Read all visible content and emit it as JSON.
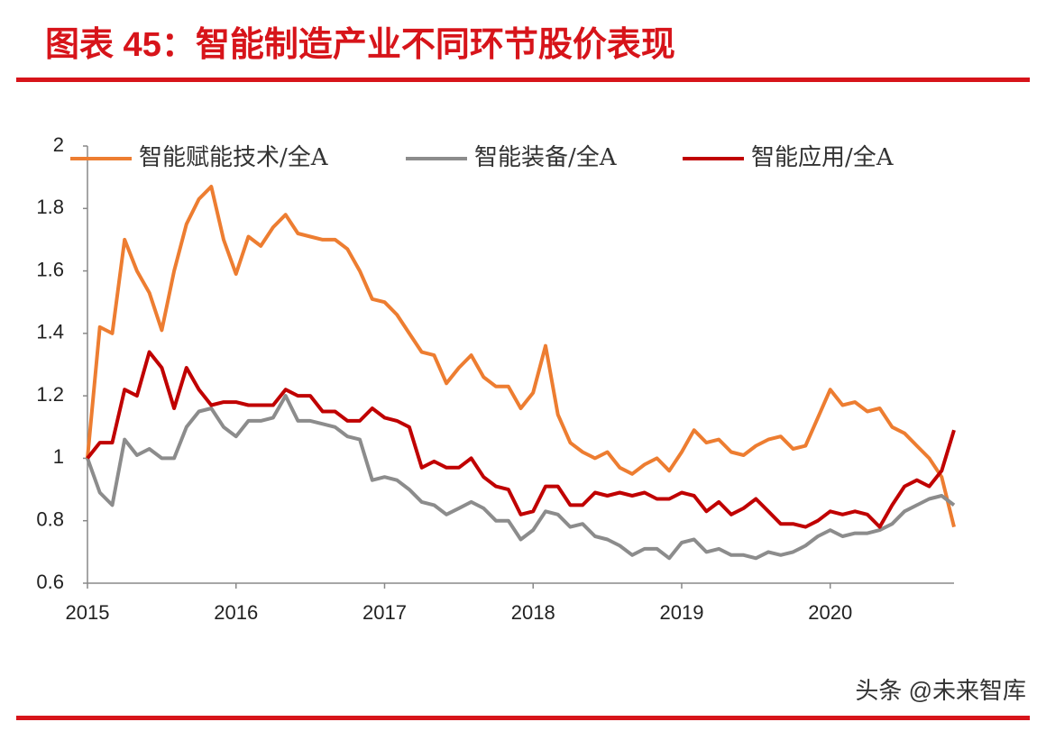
{
  "chart_data": {
    "type": "line",
    "title": "图表 45：智能制造产业不同环节股价表现",
    "watermark": "头条 @未来智库",
    "categories": [
      "2015",
      null,
      null,
      null,
      null,
      null,
      null,
      null,
      null,
      null,
      null,
      null,
      "2016",
      null,
      null,
      null,
      null,
      null,
      null,
      null,
      null,
      null,
      null,
      null,
      "2017",
      null,
      null,
      null,
      null,
      null,
      null,
      null,
      null,
      null,
      null,
      null,
      "2018",
      null,
      null,
      null,
      null,
      null,
      null,
      null,
      null,
      null,
      null,
      null,
      "2019",
      null,
      null,
      null,
      null,
      null,
      null,
      null,
      null,
      null,
      null,
      null,
      "2020",
      null,
      null,
      null,
      null,
      null,
      null,
      null,
      null,
      null,
      null
    ],
    "ylim": [
      0.6,
      2
    ],
    "yticks": [
      0.6,
      0.8,
      1,
      1.2,
      1.4,
      1.6,
      1.8,
      2
    ],
    "grid": false,
    "legend": "top",
    "series": [
      {
        "name": "智能赋能技术/全A",
        "color": "#ed7d31",
        "values": [
          1.0,
          1.42,
          1.4,
          1.7,
          1.6,
          1.53,
          1.41,
          1.6,
          1.75,
          1.83,
          1.87,
          1.7,
          1.59,
          1.71,
          1.68,
          1.74,
          1.78,
          1.72,
          1.71,
          1.7,
          1.7,
          1.67,
          1.6,
          1.51,
          1.5,
          1.46,
          1.4,
          1.34,
          1.33,
          1.24,
          1.29,
          1.33,
          1.26,
          1.23,
          1.23,
          1.16,
          1.21,
          1.36,
          1.14,
          1.05,
          1.02,
          1.0,
          1.02,
          0.97,
          0.95,
          0.98,
          1.0,
          0.96,
          1.02,
          1.09,
          1.05,
          1.06,
          1.02,
          1.01,
          1.04,
          1.06,
          1.07,
          1.03,
          1.04,
          1.13,
          1.22,
          1.17,
          1.18,
          1.15,
          1.16,
          1.1,
          1.08,
          1.04,
          1.0,
          0.94,
          0.78
        ]
      },
      {
        "name": "智能装备/全A",
        "color": "#8c8c8c",
        "values": [
          1.0,
          0.89,
          0.85,
          1.06,
          1.01,
          1.03,
          1.0,
          1.0,
          1.1,
          1.15,
          1.16,
          1.1,
          1.07,
          1.12,
          1.12,
          1.13,
          1.2,
          1.12,
          1.12,
          1.11,
          1.1,
          1.07,
          1.06,
          0.93,
          0.94,
          0.93,
          0.9,
          0.86,
          0.85,
          0.82,
          0.84,
          0.86,
          0.84,
          0.8,
          0.8,
          0.74,
          0.77,
          0.83,
          0.82,
          0.78,
          0.79,
          0.75,
          0.74,
          0.72,
          0.69,
          0.71,
          0.71,
          0.68,
          0.73,
          0.74,
          0.7,
          0.71,
          0.69,
          0.69,
          0.68,
          0.7,
          0.69,
          0.7,
          0.72,
          0.75,
          0.77,
          0.75,
          0.76,
          0.76,
          0.77,
          0.79,
          0.83,
          0.85,
          0.87,
          0.88,
          0.85
        ]
      },
      {
        "name": "智能应用/全A",
        "color": "#c00000",
        "values": [
          1.0,
          1.05,
          1.05,
          1.22,
          1.2,
          1.34,
          1.29,
          1.16,
          1.29,
          1.22,
          1.17,
          1.18,
          1.18,
          1.17,
          1.17,
          1.17,
          1.22,
          1.2,
          1.2,
          1.15,
          1.15,
          1.12,
          1.12,
          1.16,
          1.13,
          1.12,
          1.1,
          0.97,
          0.99,
          0.97,
          0.97,
          1.0,
          0.94,
          0.91,
          0.9,
          0.82,
          0.83,
          0.91,
          0.91,
          0.85,
          0.85,
          0.89,
          0.88,
          0.89,
          0.88,
          0.89,
          0.87,
          0.87,
          0.89,
          0.88,
          0.83,
          0.86,
          0.82,
          0.84,
          0.87,
          0.83,
          0.79,
          0.79,
          0.78,
          0.8,
          0.83,
          0.82,
          0.83,
          0.82,
          0.78,
          0.85,
          0.91,
          0.93,
          0.91,
          0.96,
          1.09
        ]
      }
    ]
  }
}
